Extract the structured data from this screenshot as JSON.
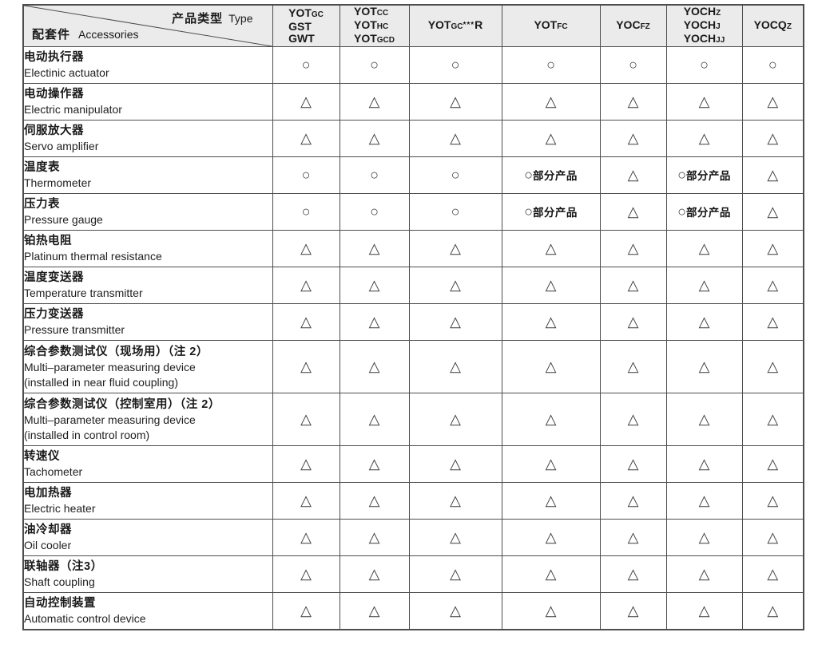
{
  "colors": {
    "header_bg": "#ebebeb",
    "border": "#4d4d4d",
    "text": "#1a1a1a"
  },
  "header": {
    "corner": {
      "type_zh": "产品类型",
      "type_en": "Type",
      "accessories_zh": "配套件",
      "accessories_en": "Accessories"
    },
    "columns": [
      {
        "lines": [
          [
            {
              "t": "YOT"
            },
            {
              "t": "GC",
              "sub": true
            }
          ],
          [
            {
              "t": "GST"
            }
          ],
          [
            {
              "t": "GWT"
            }
          ]
        ]
      },
      {
        "lines": [
          [
            {
              "t": "YOT"
            },
            {
              "t": "CC",
              "sub": true
            }
          ],
          [
            {
              "t": "YOT"
            },
            {
              "t": "HC",
              "sub": true
            }
          ],
          [
            {
              "t": "YOT"
            },
            {
              "t": "GCD",
              "sub": true
            }
          ]
        ]
      },
      {
        "lines": [
          [
            {
              "t": "YOT"
            },
            {
              "t": "GC",
              "sub": true
            },
            {
              "t": "***",
              "star": true
            },
            {
              "t": "R"
            }
          ]
        ]
      },
      {
        "lines": [
          [
            {
              "t": "YOT"
            },
            {
              "t": "FC",
              "sub": true
            }
          ]
        ]
      },
      {
        "lines": [
          [
            {
              "t": "YOC"
            },
            {
              "t": "FZ",
              "sub": true
            }
          ]
        ]
      },
      {
        "lines": [
          [
            {
              "t": "YOCH"
            },
            {
              "t": "Z",
              "sub": true
            }
          ],
          [
            {
              "t": "YOCH"
            },
            {
              "t": "J",
              "sub": true
            }
          ],
          [
            {
              "t": "YOCH"
            },
            {
              "t": "JJ",
              "sub": true
            }
          ]
        ]
      },
      {
        "lines": [
          [
            {
              "t": "YOCQ"
            },
            {
              "t": "Z",
              "sub": true
            }
          ]
        ]
      }
    ]
  },
  "symbols": {
    "circle": "○",
    "triangle": "△",
    "partial_label": "部分产品"
  },
  "rows": [
    {
      "zh": "电动执行器",
      "en": [
        "Electinic actuator"
      ],
      "cells": [
        "circle",
        "circle",
        "circle",
        "circle",
        "circle",
        "circle",
        "circle"
      ]
    },
    {
      "zh": "电动操作器",
      "en": [
        "Electric manipulator"
      ],
      "cells": [
        "triangle",
        "triangle",
        "triangle",
        "triangle",
        "triangle",
        "triangle",
        "triangle"
      ]
    },
    {
      "zh": "伺服放大器",
      "en": [
        "Servo amplifier"
      ],
      "cells": [
        "triangle",
        "triangle",
        "triangle",
        "triangle",
        "triangle",
        "triangle",
        "triangle"
      ]
    },
    {
      "zh": "温度表",
      "en": [
        "Thermometer"
      ],
      "cells": [
        "circle",
        "circle",
        "circle",
        "circle-partial",
        "triangle",
        "circle-partial",
        "triangle"
      ]
    },
    {
      "zh": "压力表",
      "en": [
        "Pressure gauge"
      ],
      "cells": [
        "circle",
        "circle",
        "circle",
        "circle-partial",
        "triangle",
        "circle-partial",
        "triangle"
      ]
    },
    {
      "zh": "铂热电阻",
      "en": [
        "Platinum thermal resistance"
      ],
      "cells": [
        "triangle",
        "triangle",
        "triangle",
        "triangle",
        "triangle",
        "triangle",
        "triangle"
      ]
    },
    {
      "zh": "温度变送器",
      "en": [
        "Temperature transmitter"
      ],
      "cells": [
        "triangle",
        "triangle",
        "triangle",
        "triangle",
        "triangle",
        "triangle",
        "triangle"
      ]
    },
    {
      "zh": "压力变送器",
      "en": [
        "Pressure transmitter"
      ],
      "cells": [
        "triangle",
        "triangle",
        "triangle",
        "triangle",
        "triangle",
        "triangle",
        "triangle"
      ]
    },
    {
      "zh": "综合参数测试仪（现场用）（注 2）",
      "en": [
        "Multi–parameter measuring device",
        "(installed in near fluid coupling)"
      ],
      "cells": [
        "triangle",
        "triangle",
        "triangle",
        "triangle",
        "triangle",
        "triangle",
        "triangle"
      ]
    },
    {
      "zh": "综合参数测试仪（控制室用）（注 2）",
      "en": [
        "Multi–parameter measuring device",
        "(installed in control room)"
      ],
      "cells": [
        "triangle",
        "triangle",
        "triangle",
        "triangle",
        "triangle",
        "triangle",
        "triangle"
      ]
    },
    {
      "zh": "转速仪",
      "en": [
        "Tachometer"
      ],
      "cells": [
        "triangle",
        "triangle",
        "triangle",
        "triangle",
        "triangle",
        "triangle",
        "triangle"
      ]
    },
    {
      "zh": "电加热器",
      "en": [
        "Electric heater"
      ],
      "cells": [
        "triangle",
        "triangle",
        "triangle",
        "triangle",
        "triangle",
        "triangle",
        "triangle"
      ]
    },
    {
      "zh": "油冷却器",
      "en": [
        "Oil cooler"
      ],
      "cells": [
        "triangle",
        "triangle",
        "triangle",
        "triangle",
        "triangle",
        "triangle",
        "triangle"
      ]
    },
    {
      "zh": "联轴器（注3）",
      "en": [
        "Shaft coupling"
      ],
      "cells": [
        "triangle",
        "triangle",
        "triangle",
        "triangle",
        "triangle",
        "triangle",
        "triangle"
      ]
    },
    {
      "zh": "自动控制装置",
      "en": [
        "Automatic control device"
      ],
      "cells": [
        "triangle",
        "triangle",
        "triangle",
        "triangle",
        "triangle",
        "triangle",
        "triangle"
      ]
    }
  ]
}
